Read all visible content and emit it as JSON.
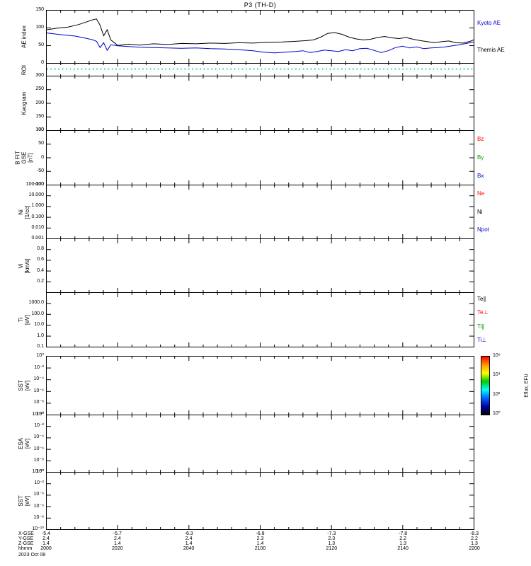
{
  "title": "P3 (TH-D)",
  "colors": {
    "axis": "#000000",
    "background": "#ffffff",
    "red": "#ff0000",
    "green": "#00a000",
    "blue": "#0000cc",
    "roi_dotted": "#00cc99"
  },
  "footer": {
    "time_label": "hhmm",
    "date_label": "2023 Oct 08",
    "time_ticks": [
      "2000",
      "2020",
      "2040",
      "2100",
      "2120",
      "2140",
      "2200"
    ],
    "ephemeris_rows": [
      {
        "label": "X-GSE",
        "values": [
          "-5.4",
          "-5.7",
          "-6.3",
          "-6.8",
          "-7.3",
          "-7.8",
          "-8.3"
        ]
      },
      {
        "label": "Y-GSE",
        "values": [
          "2.4",
          "2.4",
          "2.4",
          "2.3",
          "2.3",
          "2.2",
          "2.2"
        ]
      },
      {
        "label": "Z-GSE",
        "values": [
          "1.4",
          "1.4",
          "1.4",
          "1.4",
          "1.3",
          "1.3",
          "1.3"
        ]
      }
    ]
  },
  "chart_data": {
    "type": "line",
    "title": "P3 (TH-D)",
    "x_unit": "hhmm",
    "xlim": [
      0,
      120
    ],
    "x_major_ticks_minutes": [
      0,
      20,
      40,
      60,
      80,
      100,
      120
    ],
    "panels": [
      {
        "id": "ae",
        "ylabel_lines": [
          "AE index"
        ],
        "ylim": [
          0,
          150
        ],
        "yticks": [
          {
            "label": "150",
            "f": 0.0
          },
          {
            "label": "100",
            "f": 0.333
          },
          {
            "label": "50",
            "f": 0.667
          },
          {
            "label": "0",
            "f": 1.0
          }
        ],
        "legend": [
          {
            "label": "Kyoto AE",
            "color": "#0000cc"
          },
          {
            "label": "Themis AE",
            "color": "#000000"
          }
        ],
        "series": [
          {
            "name": "Themis AE",
            "color": "#000000",
            "x": [
              0,
              3,
              6,
              9,
              11,
              13,
              14,
              15,
              16,
              17,
              18,
              20,
              23,
              26,
              30,
              34,
              38,
              42,
              46,
              50,
              54,
              58,
              62,
              66,
              70,
              73,
              75,
              77,
              79,
              81,
              83,
              85,
              87,
              89,
              91,
              93,
              95,
              97,
              99,
              101,
              103,
              105,
              107,
              109,
              111,
              113,
              115,
              117,
              119,
              120
            ],
            "y": [
              95,
              100,
              103,
              110,
              117,
              124,
              126,
              108,
              78,
              95,
              66,
              50,
              54,
              51,
              55,
              53,
              56,
              55,
              57,
              56,
              58,
              57,
              59,
              60,
              62,
              64,
              66,
              74,
              85,
              87,
              82,
              74,
              69,
              66,
              68,
              73,
              76,
              72,
              70,
              73,
              68,
              64,
              61,
              58,
              61,
              63,
              58,
              57,
              62,
              66
            ]
          },
          {
            "name": "Kyoto AE",
            "color": "#0000cc",
            "x": [
              0,
              4,
              8,
              11,
              13,
              14,
              15,
              16,
              17,
              18,
              20,
              23,
              26,
              30,
              34,
              38,
              42,
              46,
              50,
              54,
              58,
              61,
              64,
              67,
              70,
              72,
              74,
              76,
              78,
              80,
              82,
              84,
              86,
              88,
              90,
              92,
              94,
              96,
              98,
              100,
              102,
              104,
              106,
              108,
              110,
              112,
              114,
              116,
              118,
              120
            ],
            "y": [
              86,
              81,
              77,
              71,
              66,
              62,
              44,
              58,
              36,
              52,
              49,
              47,
              45,
              44,
              43,
              42,
              43,
              41,
              40,
              38,
              35,
              31,
              29,
              31,
              33,
              35,
              30,
              33,
              37,
              35,
              33,
              38,
              35,
              41,
              42,
              36,
              30,
              35,
              44,
              48,
              43,
              46,
              41,
              43,
              44,
              46,
              49,
              52,
              56,
              60
            ]
          }
        ]
      },
      {
        "id": "roi",
        "ylabel_lines": [
          "ROI"
        ],
        "ylim": [
          0,
          1
        ],
        "yticks": [],
        "legend": [],
        "series": [
          {
            "name": "ROI flag",
            "color": "#00cc99",
            "style": "dotted",
            "x": [
              0,
              120
            ],
            "y": [
              0.55,
              0.55
            ]
          }
        ]
      },
      {
        "id": "keogram",
        "ylabel_lines": [
          "Keogram"
        ],
        "ylim": [
          100,
          300
        ],
        "yticks": [
          {
            "label": "300",
            "f": 0.0
          },
          {
            "label": "250",
            "f": 0.25
          },
          {
            "label": "200",
            "f": 0.5
          },
          {
            "label": "150",
            "f": 0.75
          },
          {
            "label": "100",
            "f": 1.0
          }
        ],
        "legend": [],
        "series": []
      },
      {
        "id": "bfit",
        "ylabel_lines": [
          "B FIT",
          "GSE",
          "[nT]"
        ],
        "ylim": [
          -100,
          100
        ],
        "yticks": [
          {
            "label": "100",
            "f": 0.0
          },
          {
            "label": "50",
            "f": 0.25
          },
          {
            "label": "0",
            "f": 0.5
          },
          {
            "label": "-50",
            "f": 0.75
          },
          {
            "label": "-100",
            "f": 1.0
          }
        ],
        "legend": [
          {
            "label": "Bz",
            "color": "#ff0000"
          },
          {
            "label": "By",
            "color": "#00a000"
          },
          {
            "label": "Bx",
            "color": "#0000cc"
          }
        ],
        "series": []
      },
      {
        "id": "ni",
        "ylabel_lines": [
          "Ni",
          "[1/cc]"
        ],
        "ylim": [
          0.001,
          100
        ],
        "yticks": [
          {
            "label": "100.000",
            "f": 0.0
          },
          {
            "label": "10.000",
            "f": 0.2
          },
          {
            "label": "1.000",
            "f": 0.4
          },
          {
            "label": "0.100",
            "f": 0.6
          },
          {
            "label": "0.010",
            "f": 0.8
          },
          {
            "label": "0.001",
            "f": 1.0
          }
        ],
        "legend": [
          {
            "label": "Ne",
            "color": "#ff0000"
          },
          {
            "label": "Ni",
            "color": "#000000"
          },
          {
            "label": "Npot",
            "color": "#0000cc"
          }
        ],
        "series": []
      },
      {
        "id": "vi",
        "ylabel_lines": [
          "Vi",
          "[km/s]"
        ],
        "ylim": [
          0,
          1
        ],
        "yticks": [
          {
            "label": "0.8",
            "f": 0.2
          },
          {
            "label": "0.6",
            "f": 0.4
          },
          {
            "label": "0.4",
            "f": 0.6
          },
          {
            "label": "0.2",
            "f": 0.8
          }
        ],
        "legend": [],
        "series": []
      },
      {
        "id": "ti",
        "ylabel_lines": [
          "Ti",
          "[eV]"
        ],
        "ylim": [
          0.1,
          10000
        ],
        "yticks": [
          {
            "label": "1000.0",
            "f": 0.2
          },
          {
            "label": "100.0",
            "f": 0.4
          },
          {
            "label": "10.0",
            "f": 0.6
          },
          {
            "label": "1.0",
            "f": 0.8
          },
          {
            "label": "0.1",
            "f": 1.0
          }
        ],
        "legend": [
          {
            "label": "Te∥",
            "color": "#000000"
          },
          {
            "label": "Te⊥",
            "color": "#ff0000"
          },
          {
            "label": "Ti∥",
            "color": "#00a000"
          },
          {
            "label": "Ti⊥",
            "color": "#0000cc"
          }
        ],
        "series": []
      },
      {
        "id": "sst1",
        "ylabel_lines": [
          "SST",
          "[eV]"
        ],
        "ylim": [
          1e-10,
          1
        ],
        "yticks": [
          {
            "label": "10⁰",
            "f": 0.0
          },
          {
            "label": "10⁻²",
            "f": 0.2
          },
          {
            "label": "10⁻⁴",
            "f": 0.4
          },
          {
            "label": "10⁻⁶",
            "f": 0.6
          },
          {
            "label": "10⁻⁸",
            "f": 0.8
          },
          {
            "label": "10⁻¹⁰",
            "f": 1.0
          }
        ],
        "legend": [],
        "series": [],
        "colorbar": {
          "label": "Eflux, EFU",
          "ticks": [
            "10⁶",
            "10⁴",
            "10²",
            "10⁰"
          ],
          "gradient": [
            "#ff0000",
            "#ff9900",
            "#ffff00",
            "#00cc00",
            "#00ffff",
            "#0066ff",
            "#0000aa",
            "#000000"
          ]
        }
      },
      {
        "id": "esa",
        "ylabel_lines": [
          "ESA",
          "[eV]"
        ],
        "ylim": [
          1e-10,
          1
        ],
        "yticks": [
          {
            "label": "10⁰",
            "f": 0.0
          },
          {
            "label": "10⁻²",
            "f": 0.2
          },
          {
            "label": "10⁻⁴",
            "f": 0.4
          },
          {
            "label": "10⁻⁶",
            "f": 0.6
          },
          {
            "label": "10⁻⁸",
            "f": 0.8
          },
          {
            "label": "10⁻¹⁰",
            "f": 1.0
          }
        ],
        "legend": [],
        "series": []
      },
      {
        "id": "sst2",
        "ylabel_lines": [
          "SST",
          "[eV]"
        ],
        "ylim": [
          1e-10,
          1
        ],
        "yticks": [
          {
            "label": "10⁰",
            "f": 0.0
          },
          {
            "label": "10⁻²",
            "f": 0.2
          },
          {
            "label": "10⁻⁴",
            "f": 0.4
          },
          {
            "label": "10⁻⁶",
            "f": 0.6
          },
          {
            "label": "10⁻⁸",
            "f": 0.8
          },
          {
            "label": "10⁻¹⁰",
            "f": 1.0
          }
        ],
        "legend": [],
        "series": []
      }
    ]
  }
}
